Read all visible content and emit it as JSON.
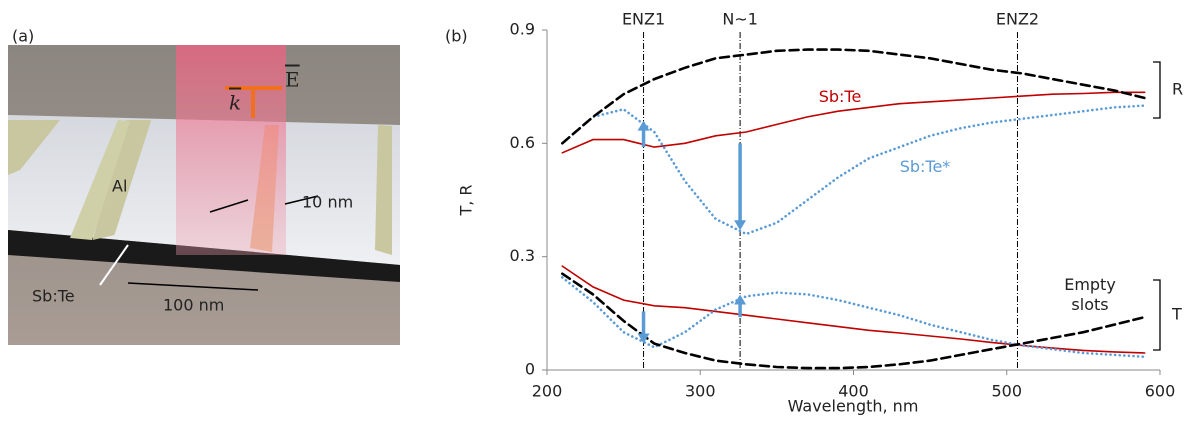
{
  "panel_a": {
    "label": "(a)",
    "texts": {
      "metal": "Al",
      "gap": "10 nm",
      "filler": "Sb:Te",
      "period": "100 nm",
      "k": "k",
      "E": "E"
    }
  },
  "chart_data": {
    "type": "line",
    "panel_label": "(b)",
    "xlabel": "Wavelength, nm",
    "ylabel": "T, R",
    "xlim": [
      200,
      600
    ],
    "xticks": [
      200,
      300,
      400,
      500,
      600
    ],
    "ylim": [
      0,
      0.9
    ],
    "yticks": [
      0,
      0.3,
      0.6,
      0.9
    ],
    "x": [
      210,
      230,
      250,
      270,
      290,
      310,
      330,
      350,
      370,
      390,
      410,
      430,
      450,
      470,
      490,
      510,
      530,
      550,
      570,
      590
    ],
    "series": [
      {
        "name": "Sb:Te",
        "color": "#c00000",
        "dash": "solid",
        "values": [
          0.575,
          0.61,
          0.61,
          0.59,
          0.6,
          0.62,
          0.63,
          0.65,
          0.67,
          0.685,
          0.695,
          0.705,
          0.71,
          0.715,
          0.72,
          0.725,
          0.73,
          0.732,
          0.735,
          0.735
        ]
      },
      {
        "name": "Sb:Te*",
        "color": "#5b9bd5",
        "dash": "dotted",
        "values": [
          0.6,
          0.67,
          0.69,
          0.63,
          0.5,
          0.4,
          0.36,
          0.39,
          0.45,
          0.51,
          0.56,
          0.59,
          0.62,
          0.64,
          0.655,
          0.665,
          0.675,
          0.685,
          0.695,
          0.7
        ]
      },
      {
        "color": "#000000",
        "dash": "dashed",
        "values": [
          0.6,
          0.67,
          0.73,
          0.77,
          0.8,
          0.825,
          0.835,
          0.845,
          0.848,
          0.848,
          0.845,
          0.835,
          0.825,
          0.81,
          0.795,
          0.785,
          0.77,
          0.755,
          0.74,
          0.72
        ]
      },
      {
        "color": "#c00000",
        "dash": "solid",
        "values": [
          0.275,
          0.22,
          0.185,
          0.17,
          0.165,
          0.155,
          0.145,
          0.135,
          0.125,
          0.115,
          0.105,
          0.098,
          0.09,
          0.082,
          0.073,
          0.065,
          0.058,
          0.052,
          0.048,
          0.045
        ]
      },
      {
        "color": "#5b9bd5",
        "dash": "dotted",
        "values": [
          0.245,
          0.18,
          0.1,
          0.06,
          0.1,
          0.16,
          0.195,
          0.205,
          0.2,
          0.185,
          0.165,
          0.145,
          0.12,
          0.1,
          0.08,
          0.065,
          0.055,
          0.045,
          0.04,
          0.035
        ]
      },
      {
        "name": "Empty slots",
        "color": "#000000",
        "dash": "dashed",
        "values": [
          0.255,
          0.2,
          0.13,
          0.07,
          0.045,
          0.025,
          0.015,
          0.008,
          0.005,
          0.005,
          0.008,
          0.015,
          0.025,
          0.04,
          0.055,
          0.07,
          0.085,
          0.1,
          0.12,
          0.14
        ]
      }
    ],
    "vlines": [
      {
        "x": 263,
        "label": "ENZ1"
      },
      {
        "x": 326,
        "label": "N~1"
      },
      {
        "x": 507,
        "label": "ENZ2"
      }
    ],
    "arrows": [
      {
        "x": 263,
        "from": 0.59,
        "to": 0.66
      },
      {
        "x": 263,
        "from": 0.155,
        "to": 0.07
      },
      {
        "x": 326,
        "from": 0.6,
        "to": 0.37
      },
      {
        "x": 326,
        "from": 0.14,
        "to": 0.2
      }
    ],
    "group_labels": [
      "R",
      "T"
    ]
  }
}
